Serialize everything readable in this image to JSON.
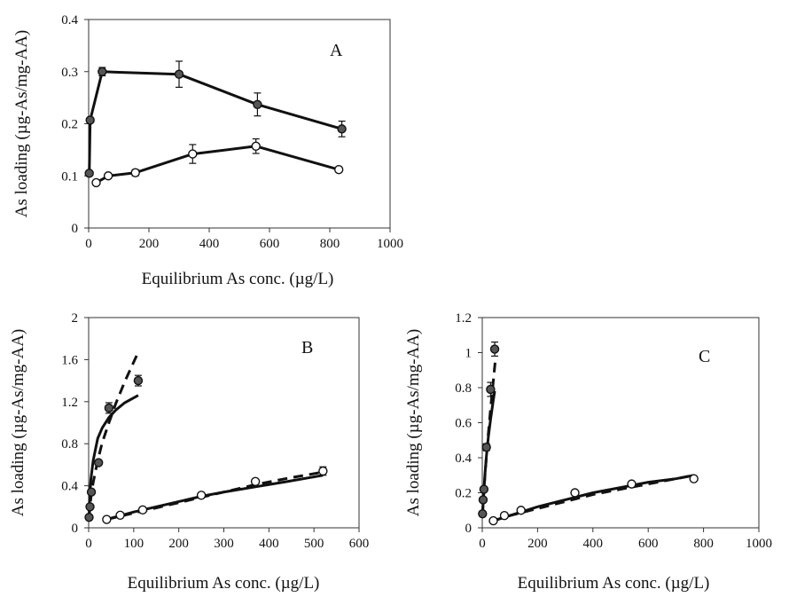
{
  "chart_data": [
    {
      "panel": "A",
      "type": "line",
      "xlabel": "Equilibrium As conc. (µg/L)",
      "ylabel": "As loading (µg-As/mg-AA)",
      "xlim": [
        0,
        1000
      ],
      "ylim": [
        0,
        0.4
      ],
      "x_ticks": [
        0,
        200,
        400,
        600,
        800,
        1000
      ],
      "y_ticks": [
        0,
        0.1,
        0.2,
        0.3,
        0.4
      ],
      "y_tick_labels": [
        "0",
        "0.1",
        "0.2",
        "0.3",
        "0.4"
      ],
      "legend": "none",
      "grid": false,
      "series": [
        {
          "marker": "filled-circle",
          "x": [
            2,
            5,
            45,
            300,
            560,
            840
          ],
          "y": [
            0.105,
            0.207,
            0.3,
            0.295,
            0.237,
            0.19
          ],
          "err": [
            0,
            0.005,
            0.008,
            0.025,
            0.022,
            0.015
          ]
        },
        {
          "marker": "open-circle",
          "x": [
            25,
            65,
            155,
            345,
            555,
            830
          ],
          "y": [
            0.087,
            0.1,
            0.106,
            0.142,
            0.157,
            0.112
          ],
          "err": [
            0.004,
            0.004,
            0.006,
            0.018,
            0.014,
            0.004
          ]
        }
      ]
    },
    {
      "panel": "B",
      "type": "scatter",
      "xlabel": "Equilibrium As conc. (µg/L)",
      "ylabel": "As loading (µg-As/mg-AA)",
      "xlim": [
        0,
        600
      ],
      "ylim": [
        0,
        2
      ],
      "x_ticks": [
        0,
        100,
        200,
        300,
        400,
        500,
        600
      ],
      "y_ticks": [
        0,
        0.4,
        0.8,
        1.2,
        1.6,
        2
      ],
      "y_tick_labels": [
        "0",
        "0.4",
        "0.8",
        "1.2",
        "1.6",
        "2"
      ],
      "legend": "none",
      "grid": false,
      "series": [
        {
          "marker": "filled-circle",
          "x": [
            1,
            3,
            6,
            22,
            45,
            110
          ],
          "y": [
            0.1,
            0.2,
            0.34,
            0.62,
            1.14,
            1.4
          ],
          "err": [
            0,
            0,
            0,
            0.02,
            0.05,
            0.05
          ]
        },
        {
          "marker": "open-circle",
          "x": [
            40,
            70,
            120,
            250,
            370,
            520
          ],
          "y": [
            0.08,
            0.12,
            0.17,
            0.31,
            0.44,
            0.54
          ],
          "err": [
            0,
            0,
            0,
            0.02,
            0.02,
            0.04
          ]
        }
      ],
      "fits": [
        {
          "style": "solid",
          "x": [
            1,
            2,
            5,
            10,
            20,
            30,
            45,
            60,
            80,
            110
          ],
          "y": [
            0.12,
            0.27,
            0.46,
            0.64,
            0.85,
            0.95,
            1.05,
            1.12,
            1.19,
            1.26
          ]
        },
        {
          "style": "dashed",
          "x": [
            1,
            3,
            6,
            10,
            20,
            30,
            45,
            60,
            80,
            110
          ],
          "y": [
            0.1,
            0.2,
            0.32,
            0.43,
            0.64,
            0.81,
            1.0,
            1.18,
            1.39,
            1.67
          ]
        },
        {
          "style": "solid",
          "x": [
            40,
            100,
            150,
            200,
            250,
            300,
            370,
            440,
            520
          ],
          "y": [
            0.08,
            0.15,
            0.2,
            0.25,
            0.3,
            0.34,
            0.39,
            0.44,
            0.5
          ]
        },
        {
          "style": "dashed",
          "x": [
            40,
            100,
            150,
            200,
            250,
            300,
            370,
            440,
            520
          ],
          "y": [
            0.08,
            0.14,
            0.19,
            0.24,
            0.29,
            0.34,
            0.41,
            0.47,
            0.53
          ]
        }
      ]
    },
    {
      "panel": "C",
      "type": "scatter",
      "xlabel": "Equilibrium As conc. (µg/L)",
      "ylabel": "As loading (µg-As/mg-AA)",
      "xlim": [
        0,
        1000
      ],
      "ylim": [
        0,
        1.2
      ],
      "x_ticks": [
        0,
        200,
        400,
        600,
        800,
        1000
      ],
      "y_ticks": [
        0,
        0.2,
        0.4,
        0.6,
        0.8,
        1,
        1.2
      ],
      "y_tick_labels": [
        "0",
        "0.2",
        "0.4",
        "0.6",
        "0.8",
        "1",
        "1.2"
      ],
      "legend": "none",
      "grid": false,
      "series": [
        {
          "marker": "filled-circle",
          "x": [
            1,
            3,
            6,
            15,
            30,
            45
          ],
          "y": [
            0.08,
            0.16,
            0.22,
            0.46,
            0.79,
            1.02
          ],
          "err": [
            0,
            0,
            0,
            0.02,
            0.04,
            0.04
          ]
        },
        {
          "marker": "open-circle",
          "x": [
            40,
            80,
            140,
            335,
            540,
            765
          ],
          "y": [
            0.04,
            0.07,
            0.1,
            0.2,
            0.25,
            0.28
          ],
          "err": [
            0,
            0,
            0,
            0.01,
            0.01,
            0.01
          ]
        }
      ],
      "fits": [
        {
          "style": "solid",
          "x": [
            1,
            3,
            6,
            10,
            15,
            22,
            30,
            40,
            45
          ],
          "y": [
            0.07,
            0.14,
            0.22,
            0.31,
            0.41,
            0.52,
            0.62,
            0.73,
            0.78
          ]
        },
        {
          "style": "dashed",
          "x": [
            1,
            3,
            6,
            10,
            15,
            22,
            30,
            40,
            48
          ],
          "y": [
            0.07,
            0.13,
            0.21,
            0.3,
            0.41,
            0.54,
            0.68,
            0.84,
            0.97
          ]
        },
        {
          "style": "solid",
          "x": [
            40,
            100,
            200,
            300,
            400,
            500,
            600,
            700,
            765
          ],
          "y": [
            0.04,
            0.07,
            0.12,
            0.16,
            0.2,
            0.23,
            0.26,
            0.28,
            0.3
          ]
        },
        {
          "style": "dashed",
          "x": [
            40,
            100,
            200,
            300,
            400,
            500,
            600,
            700,
            765
          ],
          "y": [
            0.04,
            0.07,
            0.11,
            0.15,
            0.19,
            0.22,
            0.25,
            0.28,
            0.3
          ]
        }
      ]
    }
  ]
}
